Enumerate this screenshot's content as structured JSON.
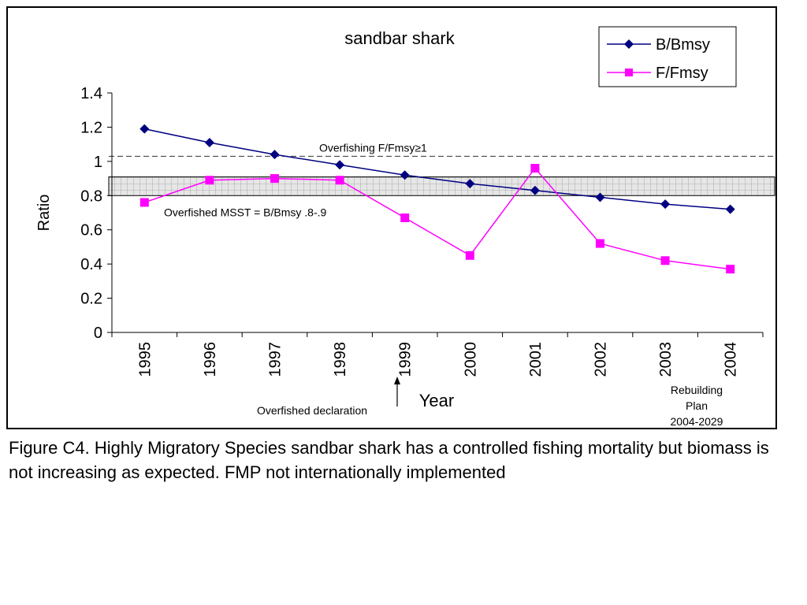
{
  "chart_data": {
    "type": "line",
    "title": "sandbar shark",
    "xlabel": "Year",
    "ylabel": "Ratio",
    "categories": [
      "1995",
      "1996",
      "1997",
      "1998",
      "1999",
      "2000",
      "2001",
      "2002",
      "2003",
      "2004"
    ],
    "ylim": [
      0,
      1.4
    ],
    "yticks": [
      "0",
      "0.2",
      "0.4",
      "0.6",
      "0.8",
      "1",
      "1.2",
      "1.4"
    ],
    "series": [
      {
        "name": "B/Bmsy",
        "color": "#000080",
        "marker": "diamond",
        "values": [
          1.19,
          1.11,
          1.04,
          0.98,
          0.92,
          0.87,
          0.83,
          0.79,
          0.75,
          0.72
        ]
      },
      {
        "name": "F/Fmsy",
        "color": "#ff00ff",
        "marker": "square",
        "values": [
          0.76,
          0.89,
          0.9,
          0.89,
          0.67,
          0.45,
          0.96,
          0.52,
          0.42,
          0.37
        ]
      }
    ],
    "legend_position": "top-right",
    "grid": false,
    "reference_line": {
      "label": "Overfishing F/Fmsy≥1",
      "style": "dashed"
    },
    "overfished_band": {
      "label": "Overfished MSST = B/Bmsy  .8-.9",
      "range": [
        0.8,
        0.9
      ]
    },
    "annotations": {
      "declaration": "Overfished declaration",
      "rebuilding": [
        "Rebuilding",
        "Plan",
        "2004-2029"
      ]
    }
  },
  "caption": "Figure C4.  Highly Migratory Species sandbar shark has a controlled fishing mortality but biomass is not increasing as expected.   FMP not internationally implemented"
}
